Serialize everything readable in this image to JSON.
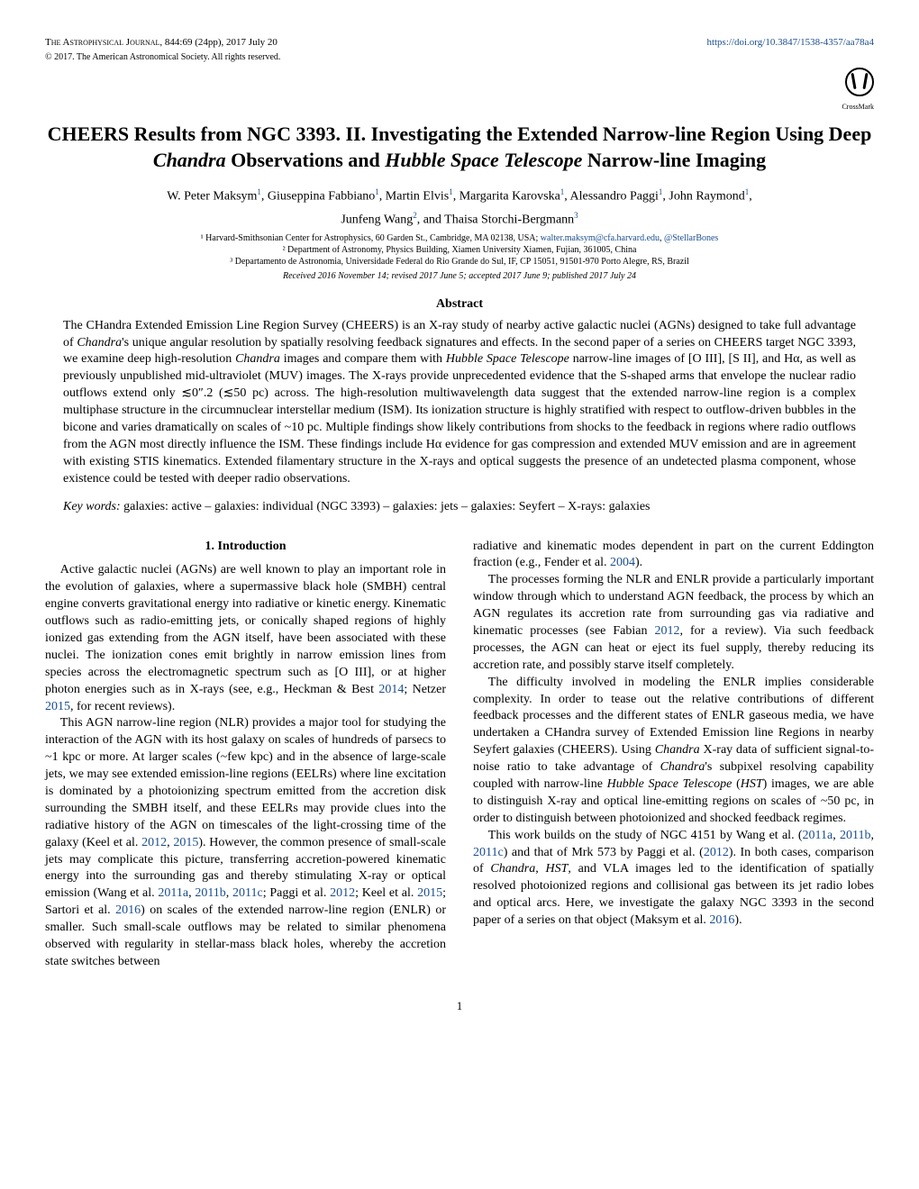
{
  "header": {
    "journal": "The Astrophysical Journal,",
    "citation": "844:69 (24pp), 2017 July 20",
    "copyright": "© 2017. The American Astronomical Society. All rights reserved.",
    "doi_url": "https://doi.org/10.3847/1538-4357/aa78a4",
    "crossmark": "CrossMark"
  },
  "title": "CHEERS Results from NGC 3393. II. Investigating the Extended Narrow-line Region Using Deep Chandra Observations and Hubble Space Telescope Narrow-line Imaging",
  "authors_line1": "W. Peter Maksym¹, Giuseppina Fabbiano¹, Martin Elvis¹, Margarita Karovska¹, Alessandro Paggi¹, John Raymond¹,",
  "authors_line2": "Junfeng Wang², and Thaisa Storchi-Bergmann³",
  "affiliations": {
    "a1": "¹ Harvard-Smithsonian Center for Astrophysics, 60 Garden St., Cambridge, MA 02138, USA;",
    "email1": "walter.maksym@cfa.harvard.edu",
    "email2": "@StellarBones",
    "a2": "² Department of Astronomy, Physics Building, Xiamen University Xiamen, Fujian, 361005, China",
    "a3": "³ Departamento de Astronomia, Universidade Federal do Rio Grande do Sul, IF, CP 15051, 91501-970 Porto Alegre, RS, Brazil"
  },
  "dates": "Received 2016 November 14; revised 2017 June 5; accepted 2017 June 9; published 2017 July 24",
  "abstract_heading": "Abstract",
  "abstract": "The CHandra Extended Emission Line Region Survey (CHEERS) is an X-ray study of nearby active galactic nuclei (AGNs) designed to take full advantage of Chandra's unique angular resolution by spatially resolving feedback signatures and effects. In the second paper of a series on CHEERS target NGC 3393, we examine deep high-resolution Chandra images and compare them with Hubble Space Telescope narrow-line images of [O III], [S II], and Hα, as well as previously unpublished mid-ultraviolet (MUV) images. The X-rays provide unprecedented evidence that the S-shaped arms that envelope the nuclear radio outflows extend only ≲0″.2 (≲50 pc) across. The high-resolution multiwavelength data suggest that the extended narrow-line region is a complex multiphase structure in the circumnuclear interstellar medium (ISM). Its ionization structure is highly stratified with respect to outflow-driven bubbles in the bicone and varies dramatically on scales of ~10 pc. Multiple findings show likely contributions from shocks to the feedback in regions where radio outflows from the AGN most directly influence the ISM. These findings include Hα evidence for gas compression and extended MUV emission and are in agreement with existing STIS kinematics. Extended filamentary structure in the X-rays and optical suggests the presence of an undetected plasma component, whose existence could be tested with deeper radio observations.",
  "keywords_label": "Key words:",
  "keywords": "galaxies: active – galaxies: individual (NGC 3393) – galaxies: jets – galaxies: Seyfert – X-rays: galaxies",
  "section1_heading": "1. Introduction",
  "col_left": {
    "p1a": "Active galactic nuclei (AGNs) are well known to play an important role in the evolution of galaxies, where a supermassive black hole (SMBH) central engine converts gravitational energy into radiative or kinetic energy. Kinematic outflows such as radio-emitting jets, or conically shaped regions of highly ionized gas extending from the AGN itself, have been associated with these nuclei. The ionization cones emit brightly in narrow emission lines from species across the electromagnetic spectrum such as [O III], or at higher photon energies such as in X-rays (see, e.g., Heckman & Best ",
    "c1": "2014",
    "p1b": "; Netzer ",
    "c2": "2015",
    "p1c": ", for recent reviews).",
    "p2a": "This AGN narrow-line region (NLR) provides a major tool for studying the interaction of the AGN with its host galaxy on scales of hundreds of parsecs to ~1 kpc or more. At larger scales (~few kpc) and in the absence of large-scale jets, we may see extended emission-line regions (EELRs) where line excitation is dominated by a photoionizing spectrum emitted from the accretion disk surrounding the SMBH itself, and these EELRs may provide clues into the radiative history of the AGN on timescales of the light-crossing time of the galaxy (Keel et al. ",
    "c3": "2012",
    "p2b": ", ",
    "c4": "2015",
    "p2c": "). However, the common presence of small-scale jets may complicate this picture, transferring accretion-powered kinematic energy into the surrounding gas and thereby stimulating X-ray or optical emission (Wang et al. ",
    "c5": "2011a",
    "p2d": ", ",
    "c6": "2011b",
    "p2e": ", ",
    "c7": "2011c",
    "p2f": "; Paggi et al. ",
    "c8": "2012",
    "p2g": "; Keel et al. ",
    "c9": "2015",
    "p2h": "; Sartori et al. ",
    "c10": "2016",
    "p2i": ") on scales of the extended narrow-line region (ENLR) or smaller. Such small-scale outflows may be related to similar phenomena observed with regularity in stellar-mass black holes, whereby the accretion state switches between"
  },
  "col_right": {
    "p1a": "radiative and kinematic modes dependent in part on the current Eddington fraction (e.g., Fender et al. ",
    "c1": "2004",
    "p1b": ").",
    "p2a": "The processes forming the NLR and ENLR provide a particularly important window through which to understand AGN feedback, the process by which an AGN regulates its accretion rate from surrounding gas via radiative and kinematic processes (see Fabian ",
    "c2": "2012",
    "p2b": ", for a review). Via such feedback processes, the AGN can heat or eject its fuel supply, thereby reducing its accretion rate, and possibly starve itself completely.",
    "p3": "The difficulty involved in modeling the ENLR implies considerable complexity. In order to tease out the relative contributions of different feedback processes and the different states of ENLR gaseous media, we have undertaken a CHandra survey of Extended Emission line Regions in nearby Seyfert galaxies (CHEERS). Using Chandra X-ray data of sufficient signal-to-noise ratio to take advantage of Chandra's subpixel resolving capability coupled with narrow-line Hubble Space Telescope (HST) images, we are able to distinguish X-ray and optical line-emitting regions on scales of ~50 pc, in order to distinguish between photoionized and shocked feedback regimes.",
    "p4a": "This work builds on the study of NGC 4151 by Wang et al. (",
    "c3": "2011a",
    "p4b": ", ",
    "c4": "2011b",
    "p4c": ", ",
    "c5": "2011c",
    "p4d": ") and that of Mrk 573 by Paggi et al. (",
    "c6": "2012",
    "p4e": "). In both cases, comparison of Chandra, HST, and VLA images led to the identification of spatially resolved photoionized regions and collisional gas between its jet radio lobes and optical arcs. Here, we investigate the galaxy NGC 3393 in the second paper of a series on that object (Maksym et al. ",
    "c7": "2016",
    "p4f": ")."
  },
  "page_number": "1"
}
